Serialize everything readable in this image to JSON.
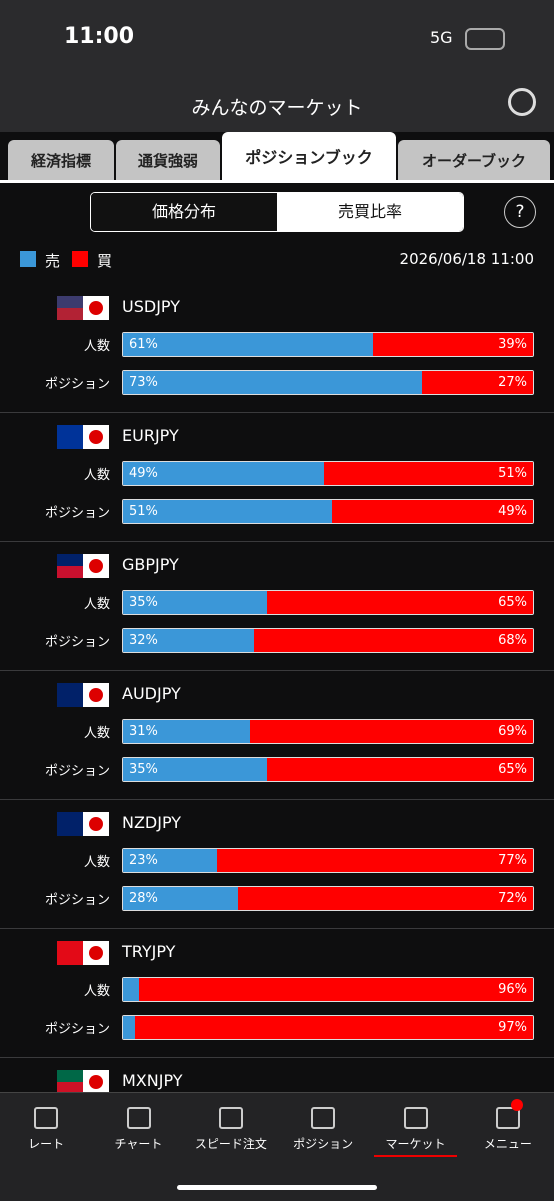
{
  "status": {
    "time": "11:00",
    "network": "5G"
  },
  "header": {
    "title": "みんなのマーケット"
  },
  "tabs": {
    "items": [
      "経済指標",
      "通貨強弱",
      "ポジションブック",
      "オーダーブック"
    ],
    "active": 2
  },
  "toggle": {
    "items": [
      "価格分布",
      "売買比率"
    ],
    "active": 1
  },
  "help": "?",
  "legend": {
    "sell": "売",
    "buy": "買",
    "date": "2026/06/18 11:00"
  },
  "pairs": [
    {
      "name": "USDJPY",
      "rows": [
        {
          "label": "人数",
          "sell": 61,
          "buy": 39,
          "sell_label": "61%",
          "buy_label": "39%"
        },
        {
          "label": "ポジション",
          "sell": 73,
          "buy": 27,
          "sell_label": "73%",
          "buy_label": "27%"
        }
      ]
    },
    {
      "name": "EURJPY",
      "rows": [
        {
          "label": "人数",
          "sell": 49,
          "buy": 51,
          "sell_label": "49%",
          "buy_label": "51%"
        },
        {
          "label": "ポジション",
          "sell": 51,
          "buy": 49,
          "sell_label": "51%",
          "buy_label": "49%"
        }
      ]
    },
    {
      "name": "GBPJPY",
      "rows": [
        {
          "label": "人数",
          "sell": 35,
          "buy": 65,
          "sell_label": "35%",
          "buy_label": "65%"
        },
        {
          "label": "ポジション",
          "sell": 32,
          "buy": 68,
          "sell_label": "32%",
          "buy_label": "68%"
        }
      ]
    },
    {
      "name": "AUDJPY",
      "rows": [
        {
          "label": "人数",
          "sell": 31,
          "buy": 69,
          "sell_label": "31%",
          "buy_label": "69%"
        },
        {
          "label": "ポジション",
          "sell": 35,
          "buy": 65,
          "sell_label": "35%",
          "buy_label": "65%"
        }
      ]
    },
    {
      "name": "NZDJPY",
      "rows": [
        {
          "label": "人数",
          "sell": 23,
          "buy": 77,
          "sell_label": "23%",
          "buy_label": "77%"
        },
        {
          "label": "ポジション",
          "sell": 28,
          "buy": 72,
          "sell_label": "28%",
          "buy_label": "72%"
        }
      ]
    },
    {
      "name": "TRYJPY",
      "rows": [
        {
          "label": "人数",
          "sell": 4,
          "buy": 96,
          "buy_label": "96%"
        },
        {
          "label": "ポジション",
          "sell": 3,
          "buy": 97,
          "buy_label": "97%"
        }
      ]
    },
    {
      "name": "MXNJPY"
    }
  ],
  "nav": {
    "items": [
      "レート",
      "チャート",
      "スピード注文",
      "ポジション",
      "マーケット",
      "メニュー"
    ],
    "active": 4
  }
}
